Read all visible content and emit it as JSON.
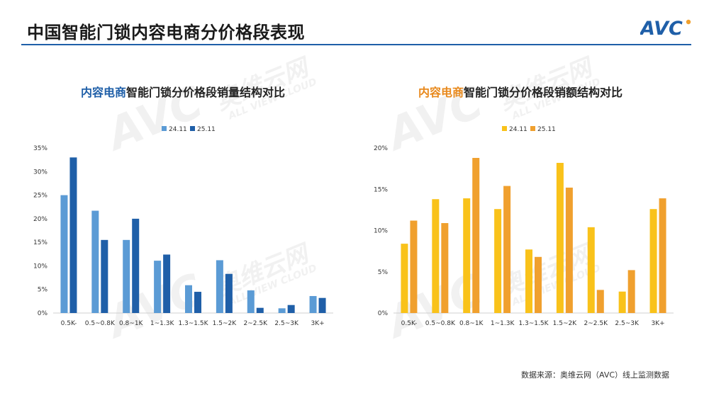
{
  "page": {
    "title": "中国智能门锁内容电商分价格段表现",
    "source": "数据来源：奥维云网（AVC）线上监测数据",
    "logo_text": "AVC",
    "brand_color": "#1f5fa8",
    "watermark_mark": "AVC",
    "watermark_cn": "奥维云网",
    "watermark_en": "ALL VIEW CLOUD"
  },
  "chart_data": [
    {
      "type": "bar",
      "title_highlight": "内容电商",
      "title_rest": "智能门锁分价格段销量结构对比",
      "categories": [
        "0.5K-",
        "0.5~0.8K",
        "0.8~1K",
        "1~1.3K",
        "1.3~1.5K",
        "1.5~2K",
        "2~2.5K",
        "2.5~3K",
        "3K+"
      ],
      "series": [
        {
          "name": "24.11",
          "color": "#5b9bd5",
          "values": [
            25.0,
            21.7,
            15.5,
            11.1,
            5.9,
            11.2,
            4.8,
            1.0,
            3.6
          ]
        },
        {
          "name": "25.11",
          "color": "#1f5fa8",
          "values": [
            33.0,
            15.5,
            20.0,
            12.4,
            4.5,
            8.3,
            1.1,
            1.7,
            3.2
          ]
        }
      ],
      "yticks": [
        "0%",
        "5%",
        "10%",
        "15%",
        "20%",
        "25%",
        "30%",
        "35%"
      ],
      "ylim": [
        0,
        35
      ],
      "legend": "top-center",
      "grid": false
    },
    {
      "type": "bar",
      "title_highlight": "内容电商",
      "title_rest": "智能门锁分价格段销额结构对比",
      "categories": [
        "0.5K-",
        "0.5~0.8K",
        "0.8~1K",
        "1~1.3K",
        "1.3~1.5K",
        "1.5~2K",
        "2~2.5K",
        "2.5~3K",
        "3K+"
      ],
      "series": [
        {
          "name": "24.11",
          "color": "#f9c21a",
          "values": [
            8.4,
            13.8,
            13.9,
            12.6,
            7.7,
            18.2,
            10.4,
            2.6,
            12.6
          ]
        },
        {
          "name": "25.11",
          "color": "#f0a02e",
          "values": [
            11.2,
            10.9,
            18.8,
            15.4,
            6.8,
            15.2,
            2.8,
            5.2,
            13.9
          ]
        }
      ],
      "yticks": [
        "0%",
        "5%",
        "10%",
        "15%",
        "20%"
      ],
      "ylim": [
        0,
        20
      ],
      "legend": "top-center",
      "grid": false
    }
  ]
}
